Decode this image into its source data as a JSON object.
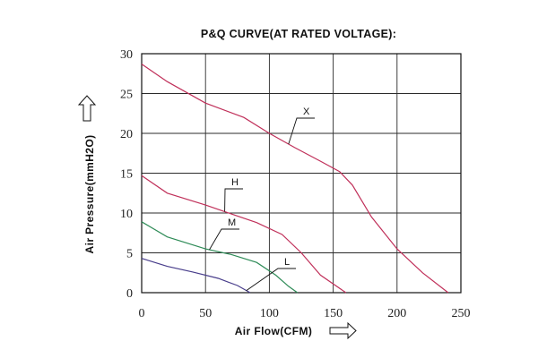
{
  "chart_data": {
    "type": "line",
    "title": "P&Q CURVE(AT RATED VOLTAGE):",
    "xlabel": "Air Flow(CFM)",
    "ylabel": "Air Pressure(mmH2O)",
    "xlim": [
      0,
      250
    ],
    "ylim": [
      0,
      30
    ],
    "xticks": [
      "0",
      "50",
      "100",
      "150",
      "200",
      "250"
    ],
    "yticks": [
      "0",
      "5",
      "10",
      "15",
      "20",
      "25",
      "30"
    ],
    "grid": true,
    "series": [
      {
        "name": "X",
        "color": "#c0305a",
        "x": [
          0,
          20,
          50,
          80,
          100,
          120,
          140,
          155,
          165,
          180,
          200,
          220,
          240
        ],
        "y": [
          28.7,
          26.5,
          23.8,
          22.0,
          20.0,
          18.2,
          16.5,
          15.2,
          13.5,
          9.5,
          5.5,
          2.5,
          0
        ]
      },
      {
        "name": "H",
        "color": "#c0305a",
        "x": [
          0,
          20,
          50,
          70,
          90,
          110,
          125,
          140,
          160
        ],
        "y": [
          14.7,
          12.5,
          11.0,
          9.9,
          8.8,
          7.3,
          5.0,
          2.2,
          0
        ]
      },
      {
        "name": "M",
        "color": "#2e8b57",
        "x": [
          0,
          20,
          50,
          70,
          90,
          105,
          115,
          122
        ],
        "y": [
          8.9,
          7.0,
          5.5,
          4.8,
          3.8,
          2.2,
          0.8,
          0
        ]
      },
      {
        "name": "L",
        "color": "#483d8b",
        "x": [
          0,
          20,
          40,
          60,
          75,
          85
        ],
        "y": [
          4.3,
          3.3,
          2.6,
          1.8,
          0.9,
          0
        ]
      }
    ]
  },
  "icons": {
    "y_arrow": "up-arrow-icon",
    "x_arrow": "right-arrow-icon"
  }
}
